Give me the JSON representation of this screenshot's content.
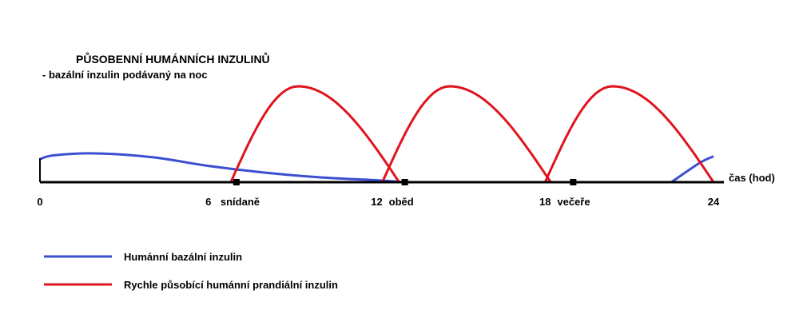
{
  "chart_data": {
    "type": "line",
    "title": "PŮSOBENNÍ HUMÁNNÍCH INZULINŮ",
    "subtitle": "- bazální inzulin podávaný na noc",
    "xlabel": "čas (hod)",
    "xlim": [
      0,
      24
    ],
    "x_ticks": [
      {
        "value": 0,
        "label": "0"
      },
      {
        "value": 6,
        "label": "6"
      },
      {
        "value": 12,
        "label": "12"
      },
      {
        "value": 18,
        "label": "18"
      },
      {
        "value": 24,
        "label": "24"
      }
    ],
    "meals": [
      {
        "time": 7,
        "label": "snídaně"
      },
      {
        "time": 13,
        "label": "oběd"
      },
      {
        "time": 19,
        "label": "večeře"
      }
    ],
    "series": [
      {
        "name": "Humánní bazální inzulin",
        "color": "#3b4fd0",
        "points": [
          [
            0,
            0.24
          ],
          [
            0.5,
            0.28
          ],
          [
            2,
            0.3
          ],
          [
            4,
            0.26
          ],
          [
            6,
            0.17
          ],
          [
            8,
            0.1
          ],
          [
            10,
            0.05
          ],
          [
            12,
            0.02
          ],
          [
            13,
            0.0
          ]
        ],
        "points_2": [
          [
            22.5,
            0.0
          ],
          [
            23.5,
            0.2
          ],
          [
            24,
            0.27
          ]
        ]
      },
      {
        "name": "Rychle působící humánní prandiální inzulin",
        "color": "#e0141e",
        "arcs": [
          {
            "start": 6.8,
            "peak": 9.2,
            "end": 12.8,
            "height": 1.0
          },
          {
            "start": 12.2,
            "peak": 14.6,
            "end": 18.2,
            "height": 1.0
          },
          {
            "start": 18.0,
            "peak": 20.4,
            "end": 24.0,
            "height": 1.0
          }
        ]
      }
    ],
    "legend": {
      "placement": "bottom-left",
      "items": [
        {
          "label": "Humánní bazální inzulin",
          "color": "#3b4fd0"
        },
        {
          "label": "Rychle působící humánní prandiální inzulin",
          "color": "#e0141e"
        }
      ]
    }
  }
}
